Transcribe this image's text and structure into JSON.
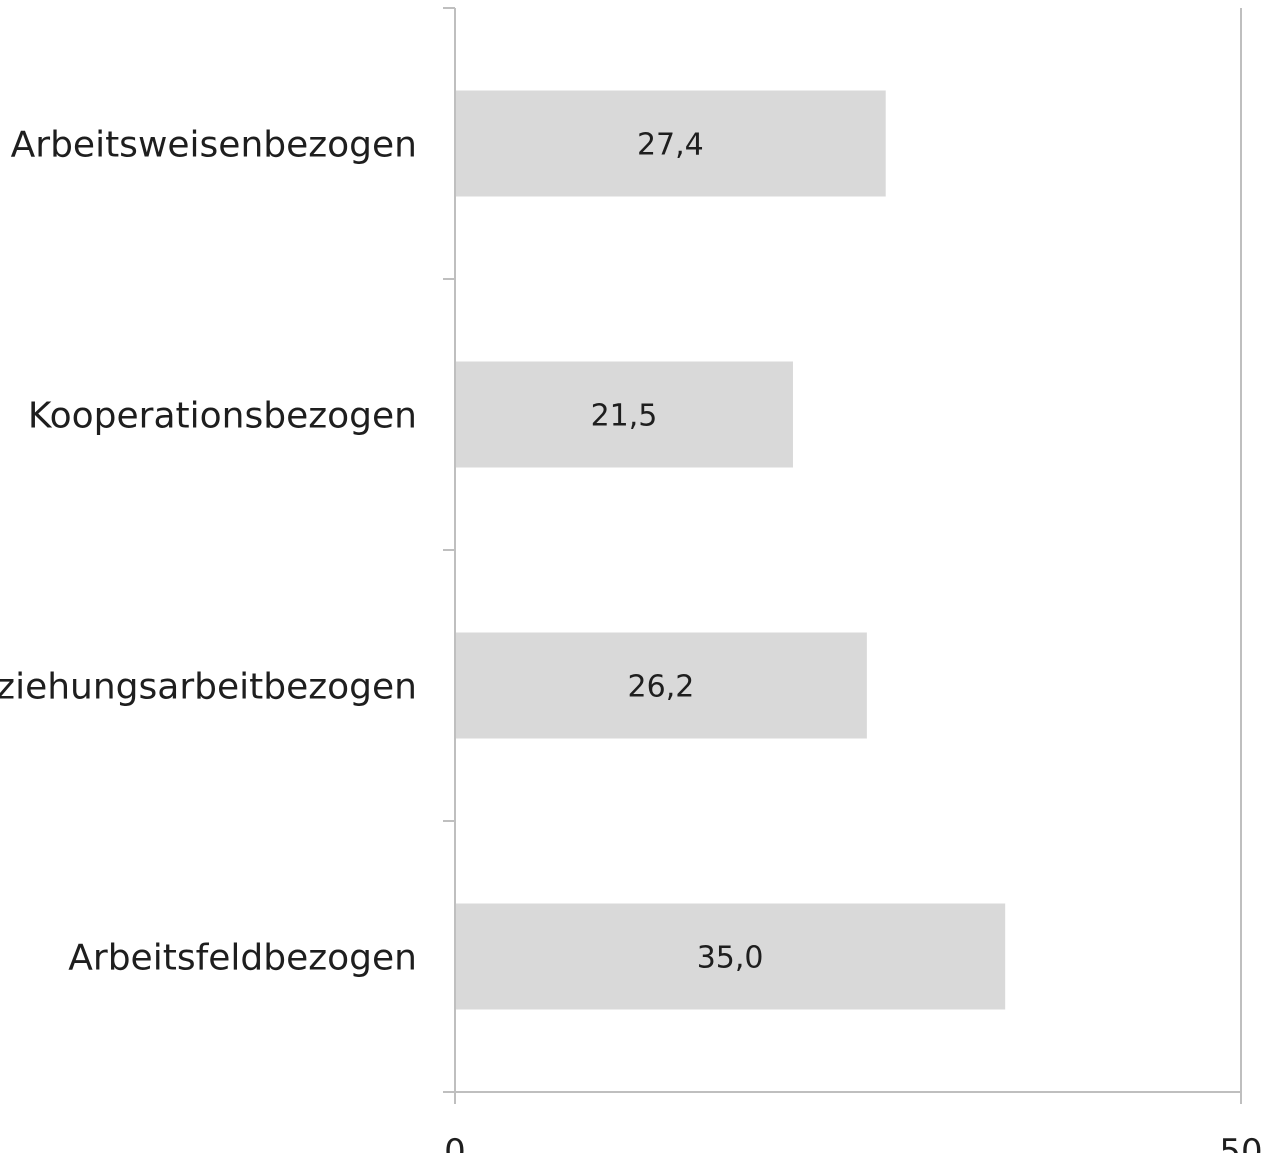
{
  "chart_data": {
    "type": "bar",
    "orientation": "horizontal",
    "categories": [
      "Arbeitsweisenbezogen",
      "Kooperationsbezogen",
      "Beziehungsarbeitbezogen",
      "Arbeitsfeldbezogen"
    ],
    "values": [
      27.4,
      21.5,
      26.2,
      35.0
    ],
    "data_labels": [
      "27,4",
      "21,5",
      "26,2",
      "35,0"
    ],
    "xlim": [
      0,
      50
    ],
    "x_ticks": [
      "0",
      "50"
    ],
    "title": "",
    "xlabel": "",
    "ylabel": "",
    "grid": false,
    "legend": "none",
    "colors": {
      "bar": "#d9d9d9",
      "axis": "#bfbfbf",
      "text": "#1e1e1e"
    }
  }
}
